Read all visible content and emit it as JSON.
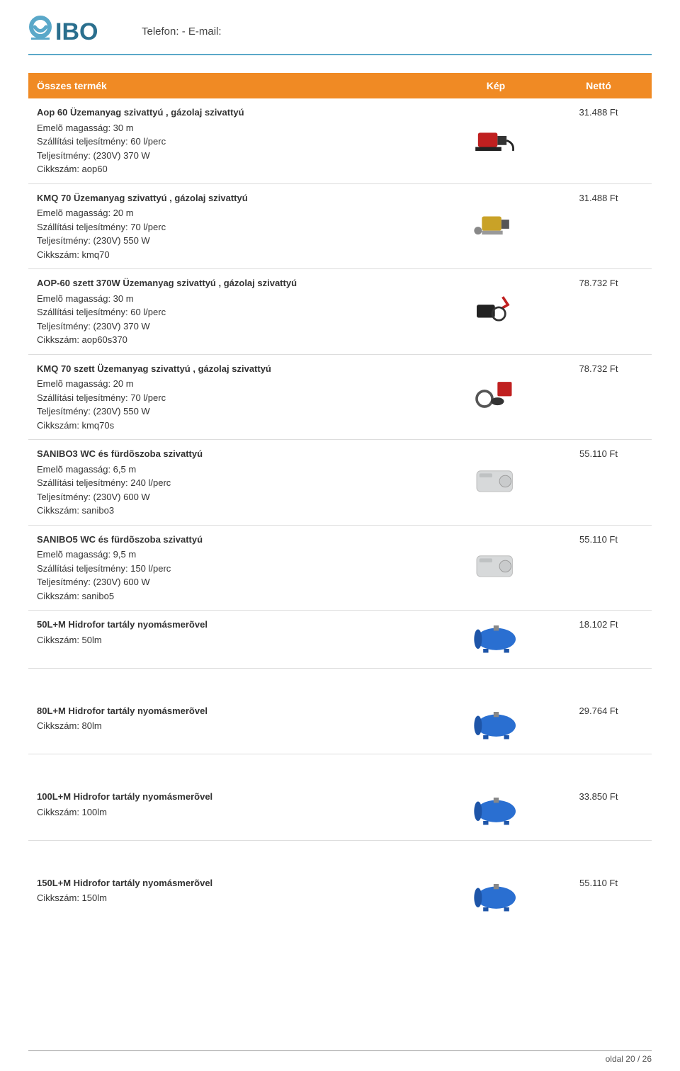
{
  "header": {
    "contact_label": "Telefon:  - E-mail:",
    "logo": {
      "letters": "IBO",
      "accent": "#5aa8c9",
      "text_color": "#2a6f8e"
    }
  },
  "table": {
    "columns": {
      "name": "Összes termék",
      "image": "Kép",
      "price": "Nettó"
    }
  },
  "products": [
    {
      "title": "Aop 60 Üzemanyag szivattyú , gázolaj szivattyú",
      "specs": [
        "Emelõ magasság: 30 m",
        "Szállítási teljesítmény: 60 l/perc",
        "Teljesítmény: (230V) 370 W",
        "Cikkszám: aop60"
      ],
      "price": "31.488 Ft",
      "image_kind": "fuel-pump-red"
    },
    {
      "title": "KMQ 70 Üzemanyag szivattyú , gázolaj szivattyú",
      "specs": [
        "Emelõ magasság: 20 m",
        "Szállítási teljesítmény: 70 l/perc",
        "Teljesítmény: (230V) 550 W",
        "Cikkszám: kmq70"
      ],
      "price": "31.488 Ft",
      "image_kind": "fuel-pump-gold"
    },
    {
      "title": "AOP-60 szett 370W Üzemanyag szivattyú , gázolaj szivattyú",
      "specs": [
        "Emelõ magasság: 30 m",
        "Szállítási teljesítmény: 60 l/perc",
        "Teljesítmény: (230V) 370 W",
        "Cikkszám: aop60s370"
      ],
      "price": "78.732 Ft",
      "image_kind": "fuel-pump-set-black"
    },
    {
      "title": "KMQ 70 szett Üzemanyag szivattyú , gázolaj szivattyú",
      "specs": [
        "Emelõ magasság: 20 m",
        "Szállítási teljesítmény: 70 l/perc",
        "Teljesítmény: (230V) 550 W",
        "Cikkszám: kmq70s"
      ],
      "price": "78.732 Ft",
      "image_kind": "fuel-pump-set-red"
    },
    {
      "title": "SANIBO3 WC és fürdõszoba szivattyú",
      "specs": [
        "Emelõ magasság: 6,5 m",
        "Szállítási teljesítmény: 240 l/perc",
        "Teljesítmény: (230V) 600 W",
        "Cikkszám: sanibo3"
      ],
      "price": "55.110 Ft",
      "image_kind": "sanibo-box"
    },
    {
      "title": "SANIBO5 WC és fürdõszoba szivattyú",
      "specs": [
        "Emelõ magasság: 9,5 m",
        "Szállítási teljesítmény: 150 l/perc",
        "Teljesítmény: (230V) 600 W",
        "Cikkszám: sanibo5"
      ],
      "price": "55.110 Ft",
      "image_kind": "sanibo-box"
    },
    {
      "title": "50L+M Hidrofor tartály nyomásmerõvel",
      "specs": [
        "Cikkszám: 50lm"
      ],
      "price": "18.102 Ft",
      "image_kind": "tank-blue",
      "spacer_after": true
    },
    {
      "title": "80L+M Hidrofor tartály nyomásmerõvel",
      "specs": [
        "Cikkszám: 80lm"
      ],
      "price": "29.764 Ft",
      "image_kind": "tank-blue",
      "spacer_after": true
    },
    {
      "title": "100L+M Hidrofor tartály nyomásmerõvel",
      "specs": [
        "Cikkszám: 100lm"
      ],
      "price": "33.850 Ft",
      "image_kind": "tank-blue",
      "spacer_after": true
    },
    {
      "title": "150L+M Hidrofor tartály nyomásmerõvel",
      "specs": [
        "Cikkszám: 150lm"
      ],
      "price": "55.110 Ft",
      "image_kind": "tank-blue",
      "no_border": true
    }
  ],
  "footer": {
    "text": "oldal 20 / 26"
  },
  "colors": {
    "header_bg": "#f08a24",
    "header_text": "#ffffff",
    "border": "#dddddd",
    "accent_line": "#5aa8c9",
    "tank_blue": "#2a6fd1",
    "pump_red": "#c02020",
    "pump_gold": "#c9a227",
    "box_grey": "#d7d9da"
  }
}
